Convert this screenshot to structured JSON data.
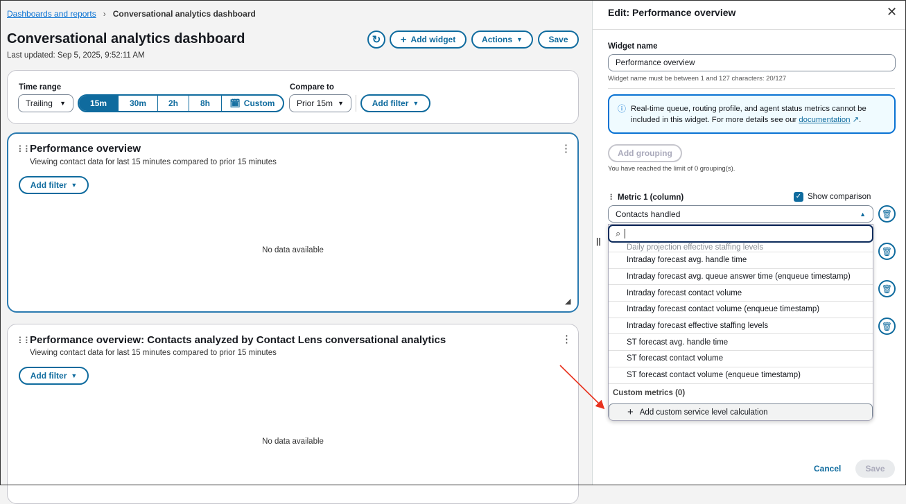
{
  "breadcrumb": {
    "parent": "Dashboards and reports",
    "current": "Conversational analytics dashboard"
  },
  "header": {
    "title": "Conversational analytics dashboard",
    "last_updated": "Last updated: Sep 5, 2025, 9:52:11 AM",
    "add_widget": "Add widget",
    "actions": "Actions",
    "save": "Save"
  },
  "filters": {
    "time_range_label": "Time range",
    "trailing": "Trailing",
    "ranges": [
      "15m",
      "30m",
      "2h",
      "8h",
      "Custom"
    ],
    "selected_range": "15m",
    "compare_label": "Compare to",
    "compare_value": "Prior 15m",
    "add_filter": "Add filter"
  },
  "widgets": [
    {
      "title": "Performance overview",
      "subtitle": "Viewing contact data for last 15 minutes compared to prior 15 minutes",
      "add_filter": "Add filter",
      "empty": "No data available"
    },
    {
      "title": "Performance overview: Contacts analyzed by Contact Lens conversational analytics",
      "subtitle": "Viewing contact data for last 15 minutes compared to prior 15 minutes",
      "add_filter": "Add filter",
      "empty": "No data available"
    }
  ],
  "panel": {
    "title": "Edit: Performance overview",
    "widget_name_label": "Widget name",
    "widget_name_value": "Performance overview",
    "widget_name_hint": "Widget name must be between 1 and 127 characters: 20/127",
    "info_text": "Real-time queue, routing profile, and agent status metrics cannot be included in this widget. For more details see our ",
    "info_link": "documentation",
    "add_grouping": "Add grouping",
    "grouping_limit": "You have reached the limit of 0 grouping(s).",
    "metric_label": "Metric 1 (column)",
    "show_comparison": "Show comparison",
    "show_comparison_checked": true,
    "metric_value": "Contacts handled",
    "search_value": "",
    "options_partial": "Daily projection effective staffing levels",
    "options": [
      "Intraday forecast avg. handle time",
      "Intraday forecast avg. queue answer time (enqueue timestamp)",
      "Intraday forecast contact volume",
      "Intraday forecast contact volume (enqueue timestamp)",
      "Intraday forecast effective staffing levels",
      "ST forecast avg. handle time",
      "ST forecast contact volume",
      "ST forecast contact volume (enqueue timestamp)"
    ],
    "custom_metrics_header": "Custom metrics (0)",
    "add_custom": "Add custom service level calculation",
    "cancel": "Cancel",
    "save": "Save"
  },
  "colors": {
    "accent": "#0f6b9e",
    "annotation_arrow": "#e8321e",
    "info_bg": "#f0fbff",
    "info_border": "#0972d3"
  }
}
